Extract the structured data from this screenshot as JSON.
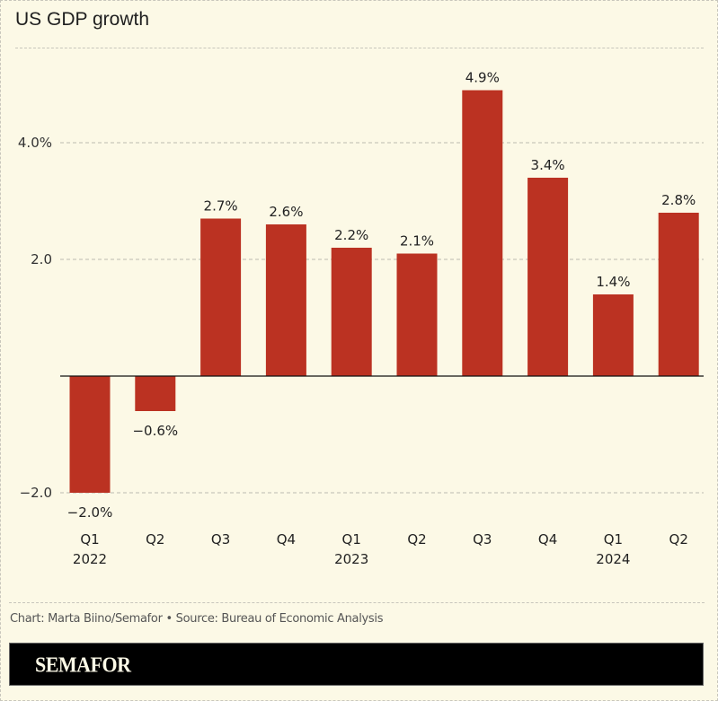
{
  "chart_data": {
    "type": "bar",
    "title": "US GDP growth",
    "categories": [
      "Q1 2022",
      "Q2",
      "Q3",
      "Q4",
      "Q1 2023",
      "Q2",
      "Q3",
      "Q4",
      "Q1 2024",
      "Q2"
    ],
    "category_lines": [
      [
        "Q1",
        "2022"
      ],
      [
        "Q2",
        ""
      ],
      [
        "Q3",
        ""
      ],
      [
        "Q4",
        ""
      ],
      [
        "Q1",
        "2023"
      ],
      [
        "Q2",
        ""
      ],
      [
        "Q3",
        ""
      ],
      [
        "Q4",
        ""
      ],
      [
        "Q1",
        "2024"
      ],
      [
        "Q2",
        ""
      ]
    ],
    "values": [
      -2.0,
      -0.6,
      2.7,
      2.6,
      2.2,
      2.1,
      4.9,
      3.4,
      1.4,
      2.8
    ],
    "data_labels": [
      "−2.0%",
      "−0.6%",
      "2.7%",
      "2.6%",
      "2.2%",
      "2.1%",
      "4.9%",
      "3.4%",
      "1.4%",
      "2.8%"
    ],
    "yticks": [
      4.0,
      2.0,
      -2.0
    ],
    "ytick_labels": [
      "4.0%",
      "2.0",
      "−2.0"
    ],
    "ylim": [
      -2.0,
      6.0
    ],
    "xlabel": "",
    "ylabel": "",
    "grid": true,
    "bar_color": "#bb3222"
  },
  "footer": {
    "credit": "Chart: Marta Biino/Semafor • Source: Bureau of Economic Analysis",
    "brand": "SEMAFOR"
  }
}
